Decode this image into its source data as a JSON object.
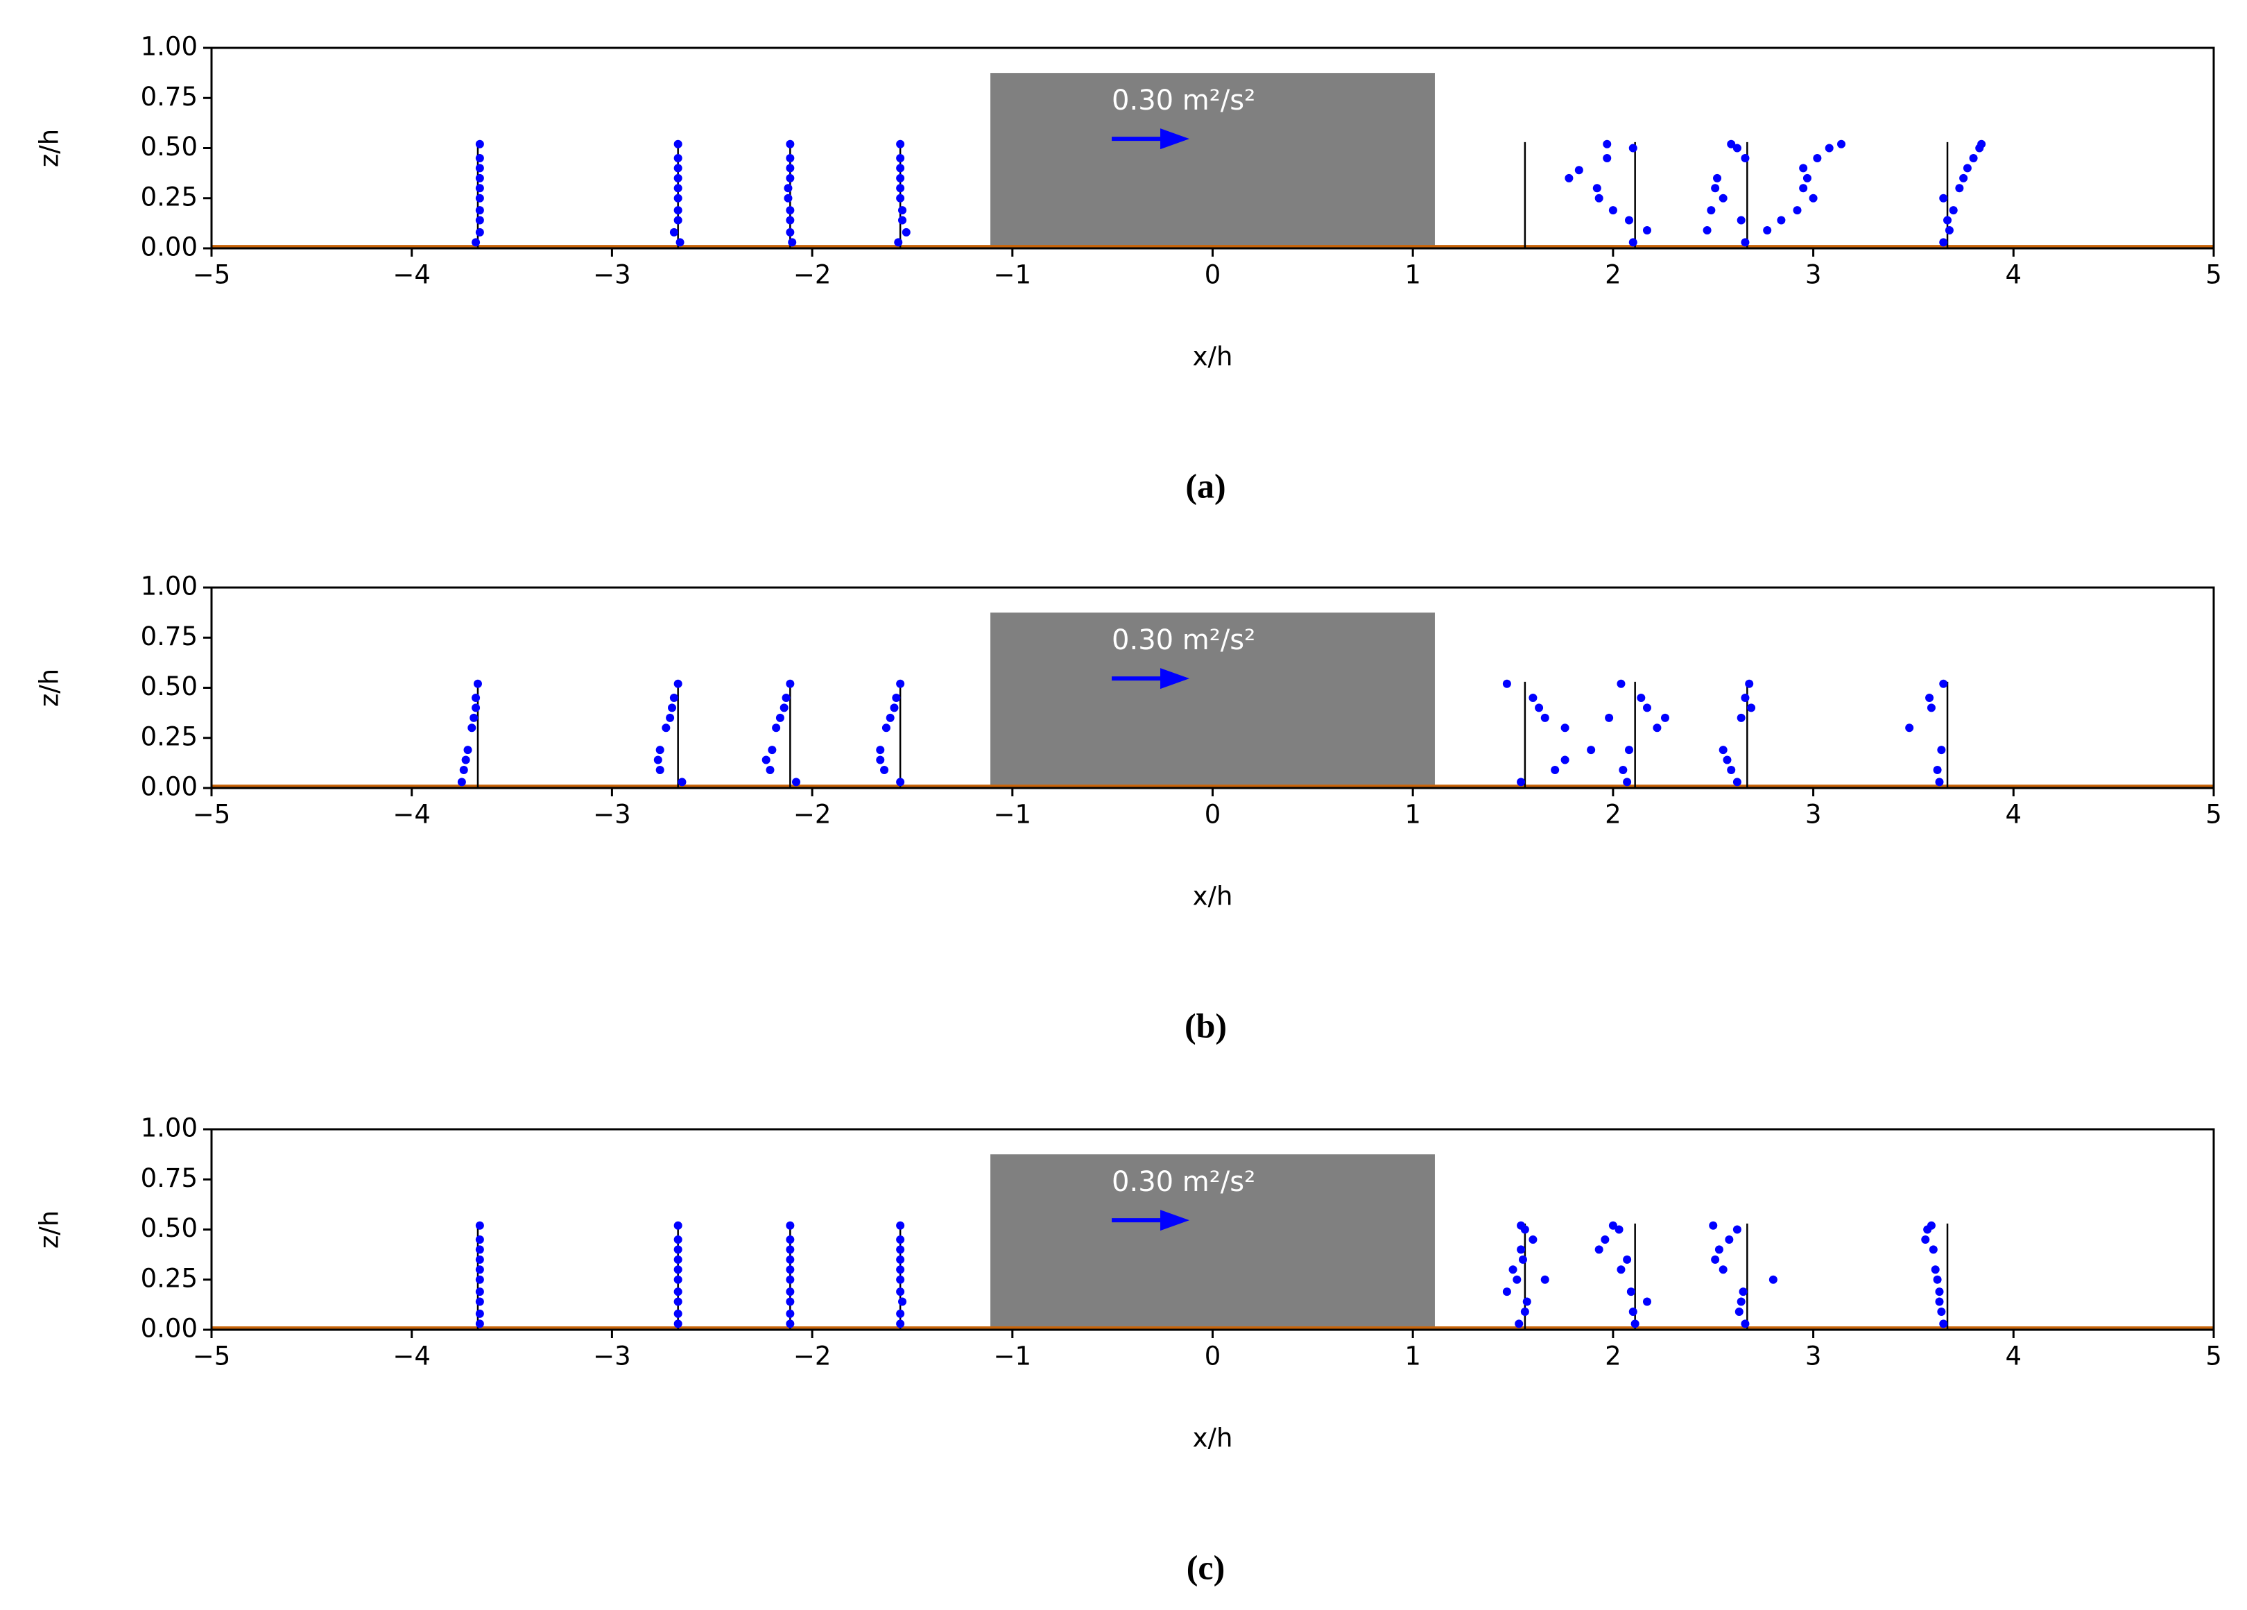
{
  "chart_data": [
    {
      "type": "scatter",
      "caption": "(a)",
      "xlabel": "x/h",
      "ylabel": "z/h",
      "color": "#0000ff",
      "xlim": [
        -5,
        5
      ],
      "ylim": [
        0,
        1
      ],
      "xticks": [
        {
          "value": -5,
          "label": "−5"
        },
        {
          "value": -4,
          "label": "−4"
        },
        {
          "value": -3,
          "label": "−3"
        },
        {
          "value": -2,
          "label": "−2"
        },
        {
          "value": -1,
          "label": "−1"
        },
        0,
        1,
        2,
        3,
        4,
        5
      ],
      "yticks": [
        {
          "value": 0,
          "label": "0.00"
        },
        {
          "value": 0.25,
          "label": "0.25"
        },
        {
          "value": 0.5,
          "label": "0.50"
        },
        {
          "value": 0.75,
          "label": "0.75"
        },
        {
          "value": 1,
          "label": "1.00"
        }
      ],
      "stations": [
        -3.67,
        -2.67,
        -2.11,
        -1.56,
        1.56,
        2.11,
        2.67,
        3.67
      ],
      "station_top": 0.53,
      "block": {
        "x": [
          -1.11,
          1.11
        ],
        "top": 0.875,
        "color": "#808080"
      },
      "ground": {
        "z": 0.01,
        "color": "#c8640a"
      },
      "annotation": "0.30 m²/s²",
      "x": [
        -3.68,
        -3.66,
        -3.66,
        -3.66,
        -3.66,
        -3.66,
        -3.66,
        -3.66,
        -3.66,
        -3.66,
        -2.66,
        -2.69,
        -2.67,
        -2.67,
        -2.67,
        -2.67,
        -2.67,
        -2.67,
        -2.67,
        -2.67,
        -2.1,
        -2.11,
        -2.11,
        -2.11,
        -2.12,
        -2.12,
        -2.11,
        -2.11,
        -2.11,
        -2.11,
        -1.57,
        -1.53,
        -1.55,
        -1.55,
        -1.56,
        -1.56,
        -1.56,
        -1.56,
        -1.56,
        -1.56,
        1.78,
        1.83,
        1.92,
        1.97,
        1.97,
        1.93,
        2.0,
        2.08,
        2.1,
        2.17,
        2.1,
        2.47,
        2.49,
        2.51,
        2.52,
        2.55,
        2.59,
        2.62,
        2.66,
        2.66,
        2.64,
        2.77,
        2.84,
        2.92,
        2.95,
        2.97,
        3.0,
        2.95,
        3.02,
        3.08,
        3.14,
        3.65,
        3.68,
        3.67,
        3.7,
        3.65,
        3.73,
        3.75,
        3.77,
        3.8,
        3.83,
        3.84
      ],
      "y": [
        0.03,
        0.08,
        0.14,
        0.19,
        0.25,
        0.3,
        0.35,
        0.4,
        0.45,
        0.52,
        0.03,
        0.08,
        0.14,
        0.19,
        0.25,
        0.3,
        0.35,
        0.4,
        0.45,
        0.52,
        0.03,
        0.08,
        0.14,
        0.19,
        0.25,
        0.3,
        0.35,
        0.4,
        0.45,
        0.52,
        0.03,
        0.08,
        0.14,
        0.19,
        0.25,
        0.3,
        0.35,
        0.4,
        0.45,
        0.52,
        0.35,
        0.39,
        0.3,
        0.45,
        0.52,
        0.25,
        0.19,
        0.14,
        0.03,
        0.09,
        0.5,
        0.09,
        0.19,
        0.3,
        0.35,
        0.25,
        0.52,
        0.5,
        0.45,
        0.03,
        0.14,
        0.09,
        0.14,
        0.19,
        0.3,
        0.35,
        0.25,
        0.4,
        0.45,
        0.5,
        0.52,
        0.03,
        0.09,
        0.14,
        0.19,
        0.25,
        0.3,
        0.35,
        0.4,
        0.45,
        0.5,
        0.52
      ]
    },
    {
      "type": "scatter",
      "caption": "(b)",
      "xlabel": "x/h",
      "ylabel": "z/h",
      "color": "#0000ff",
      "xlim": [
        -5,
        5
      ],
      "ylim": [
        0,
        1
      ],
      "xticks": [
        {
          "value": -5,
          "label": "−5"
        },
        {
          "value": -4,
          "label": "−4"
        },
        {
          "value": -3,
          "label": "−3"
        },
        {
          "value": -2,
          "label": "−2"
        },
        {
          "value": -1,
          "label": "−1"
        },
        0,
        1,
        2,
        3,
        4,
        5
      ],
      "yticks": [
        {
          "value": 0,
          "label": "0.00"
        },
        {
          "value": 0.25,
          "label": "0.25"
        },
        {
          "value": 0.5,
          "label": "0.50"
        },
        {
          "value": 0.75,
          "label": "0.75"
        },
        {
          "value": 1,
          "label": "1.00"
        }
      ],
      "stations": [
        -3.67,
        -2.67,
        -2.11,
        -1.56,
        1.56,
        2.11,
        2.67,
        3.67
      ],
      "station_top": 0.53,
      "block": {
        "x": [
          -1.11,
          1.11
        ],
        "top": 0.875,
        "color": "#808080"
      },
      "ground": {
        "z": 0.01,
        "color": "#c8640a"
      },
      "annotation": "0.30 m²/s²",
      "x": [
        -3.75,
        -3.74,
        -3.73,
        -3.72,
        -3.7,
        -3.69,
        -3.68,
        -3.68,
        -3.67,
        -2.65,
        -2.76,
        -2.77,
        -2.76,
        -2.73,
        -2.71,
        -2.7,
        -2.69,
        -2.67,
        -2.08,
        -2.21,
        -2.23,
        -2.2,
        -2.18,
        -2.16,
        -2.14,
        -2.13,
        -2.11,
        -1.56,
        -1.64,
        -1.66,
        -1.66,
        -1.63,
        -1.61,
        -1.59,
        -1.58,
        -1.56,
        1.47,
        1.54,
        1.6,
        1.63,
        1.66,
        1.71,
        1.76,
        1.76,
        1.89,
        1.98,
        2.04,
        2.05,
        2.07,
        2.08,
        2.14,
        2.17,
        2.22,
        2.26,
        2.55,
        2.57,
        2.59,
        2.62,
        2.64,
        2.66,
        2.68,
        2.69,
        3.48,
        3.58,
        3.59,
        3.62,
        3.63,
        3.64,
        3.65
      ],
      "y": [
        0.03,
        0.09,
        0.14,
        0.19,
        0.3,
        0.35,
        0.4,
        0.45,
        0.52,
        0.03,
        0.09,
        0.14,
        0.19,
        0.3,
        0.35,
        0.4,
        0.45,
        0.52,
        0.03,
        0.09,
        0.14,
        0.19,
        0.3,
        0.35,
        0.4,
        0.45,
        0.52,
        0.03,
        0.09,
        0.14,
        0.19,
        0.3,
        0.35,
        0.4,
        0.45,
        0.52,
        0.52,
        0.03,
        0.45,
        0.4,
        0.35,
        0.09,
        0.14,
        0.3,
        0.19,
        0.35,
        0.52,
        0.09,
        0.03,
        0.19,
        0.45,
        0.4,
        0.3,
        0.35,
        0.19,
        0.14,
        0.09,
        0.03,
        0.35,
        0.45,
        0.52,
        0.4,
        0.3,
        0.45,
        0.4,
        0.09,
        0.03,
        0.19,
        0.52
      ]
    },
    {
      "type": "scatter",
      "caption": "(c)",
      "xlabel": "x/h",
      "ylabel": "z/h",
      "color": "#0000ff",
      "xlim": [
        -5,
        5
      ],
      "ylim": [
        0,
        1
      ],
      "xticks": [
        {
          "value": -5,
          "label": "−5"
        },
        {
          "value": -4,
          "label": "−4"
        },
        {
          "value": -3,
          "label": "−3"
        },
        {
          "value": -2,
          "label": "−2"
        },
        {
          "value": -1,
          "label": "−1"
        },
        0,
        1,
        2,
        3,
        4,
        5
      ],
      "yticks": [
        {
          "value": 0,
          "label": "0.00"
        },
        {
          "value": 0.25,
          "label": "0.25"
        },
        {
          "value": 0.5,
          "label": "0.50"
        },
        {
          "value": 0.75,
          "label": "0.75"
        },
        {
          "value": 1,
          "label": "1.00"
        }
      ],
      "stations": [
        -3.67,
        -2.67,
        -2.11,
        -1.56,
        1.56,
        2.11,
        2.67,
        3.67
      ],
      "station_top": 0.53,
      "block": {
        "x": [
          -1.11,
          1.11
        ],
        "top": 0.875,
        "color": "#808080"
      },
      "ground": {
        "z": 0.01,
        "color": "#c8640a"
      },
      "annotation": "0.30 m²/s²",
      "x": [
        -3.66,
        -3.66,
        -3.66,
        -3.66,
        -3.66,
        -3.66,
        -3.66,
        -3.66,
        -3.66,
        -3.66,
        -2.67,
        -2.67,
        -2.67,
        -2.67,
        -2.67,
        -2.67,
        -2.67,
        -2.67,
        -2.67,
        -2.67,
        -2.11,
        -2.11,
        -2.11,
        -2.11,
        -2.11,
        -2.11,
        -2.11,
        -2.11,
        -2.11,
        -2.11,
        -1.56,
        -1.56,
        -1.55,
        -1.56,
        -1.56,
        -1.56,
        -1.56,
        -1.56,
        -1.56,
        -1.56,
        1.47,
        1.5,
        1.52,
        1.53,
        1.54,
        1.55,
        1.56,
        1.57,
        1.54,
        1.56,
        1.6,
        1.66,
        1.93,
        1.96,
        2.0,
        2.04,
        2.07,
        2.09,
        2.11,
        2.1,
        2.17,
        2.03,
        2.5,
        2.51,
        2.53,
        2.55,
        2.58,
        2.62,
        2.64,
        2.65,
        2.66,
        2.63,
        2.8,
        3.56,
        3.57,
        3.59,
        3.6,
        3.61,
        3.62,
        3.63,
        3.63,
        3.64,
        3.65
      ],
      "y": [
        0.03,
        0.08,
        0.14,
        0.19,
        0.25,
        0.3,
        0.35,
        0.4,
        0.45,
        0.52,
        0.03,
        0.08,
        0.14,
        0.19,
        0.25,
        0.3,
        0.35,
        0.4,
        0.45,
        0.52,
        0.03,
        0.08,
        0.14,
        0.19,
        0.25,
        0.3,
        0.35,
        0.4,
        0.45,
        0.52,
        0.03,
        0.08,
        0.14,
        0.19,
        0.25,
        0.3,
        0.35,
        0.4,
        0.45,
        0.52,
        0.19,
        0.3,
        0.25,
        0.03,
        0.4,
        0.35,
        0.09,
        0.14,
        0.52,
        0.5,
        0.45,
        0.25,
        0.4,
        0.45,
        0.52,
        0.3,
        0.35,
        0.19,
        0.03,
        0.09,
        0.14,
        0.5,
        0.52,
        0.35,
        0.4,
        0.3,
        0.45,
        0.5,
        0.14,
        0.19,
        0.03,
        0.09,
        0.25,
        0.45,
        0.5,
        0.52,
        0.4,
        0.3,
        0.25,
        0.19,
        0.14,
        0.09,
        0.03
      ]
    }
  ]
}
